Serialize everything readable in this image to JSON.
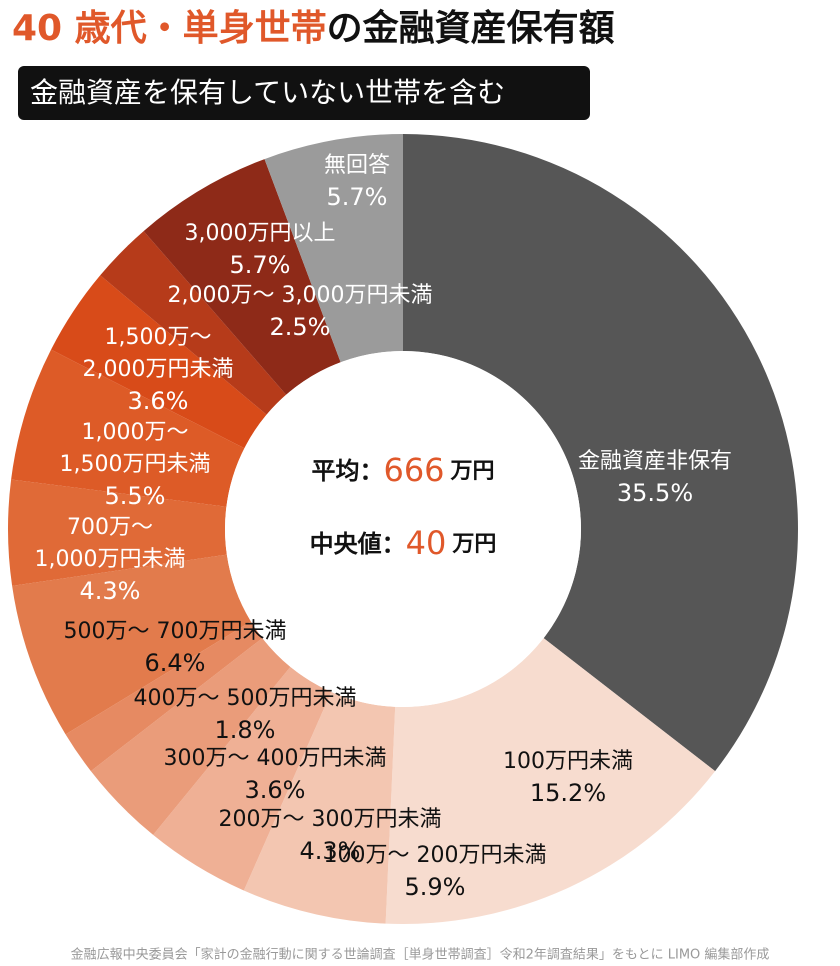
{
  "chart_data": {
    "type": "donut",
    "title": [
      "40 歳代・単身世帯",
      "の金融資産保有額"
    ],
    "subtitle": "金融資産を保有していない世帯を含む",
    "categories": [
      [
        "金融資産非保有"
      ],
      [
        "100万円未満"
      ],
      [
        "100万～ 200万円未満"
      ],
      [
        "200万～ 300万円未満"
      ],
      [
        "300万～ 400万円未満"
      ],
      [
        "400万～ 500万円未満"
      ],
      [
        "500万～ 700万円未満"
      ],
      [
        "700万～",
        "1,000万円未満"
      ],
      [
        "1,000万～",
        "1,500万円未満"
      ],
      [
        "1,500万～",
        "2,000万円未満"
      ],
      [
        "2,000万～ 3,000万円未満"
      ],
      [
        "3,000万円以上"
      ],
      [
        "無回答"
      ]
    ],
    "values": [
      35.5,
      15.2,
      5.9,
      4.3,
      3.6,
      1.8,
      6.4,
      4.3,
      5.5,
      3.6,
      2.5,
      5.7,
      5.7
    ],
    "value_labels": [
      "35.5%",
      "15.2%",
      "5.9%",
      "4.3%",
      "3.6%",
      "1.8%",
      "6.4%",
      "4.3%",
      "5.5%",
      "3.6%",
      "2.5%",
      "5.7%",
      "5.7%"
    ],
    "colors": [
      "#565656",
      "#f7dccf",
      "#f3c6b1",
      "#efb095",
      "#ea9c7a",
      "#e68a62",
      "#e27b4c",
      "#e06a37",
      "#dd5b27",
      "#d84b19",
      "#b63b1a",
      "#8e2a18",
      "#9b9b9b"
    ],
    "center": [
      {
        "label": "平均：",
        "value": 666,
        "unit": "万円"
      },
      {
        "label": "中央値：",
        "value": 40,
        "unit": "万円"
      }
    ],
    "source": "金融広報中央委員会「家計の金融行動に関する世論調査［単身世帯調査］令和2年調査結果」をもとに LIMO 編集部作成"
  }
}
